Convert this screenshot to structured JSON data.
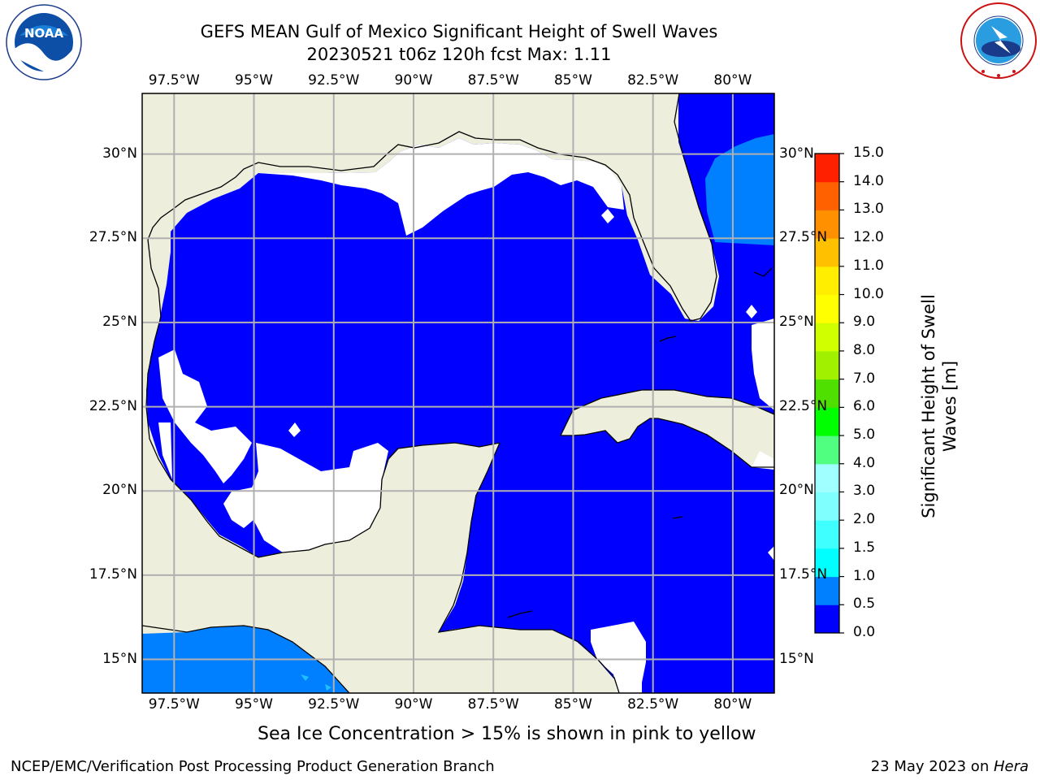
{
  "header": {
    "title_line1": "GEFS MEAN Gulf of Mexico Significant Height of Swell Waves",
    "title_line2": "20230521 t06z 120h fcst   Max: 1.11"
  },
  "logos": {
    "left": {
      "name": "noaa-logo",
      "text": "NOAA",
      "ring_text": "NATIONAL OCEANIC AND ATMOSPHERIC ADMINISTRATION · U.S. DEPARTMENT OF COMMERCE"
    },
    "right": {
      "name": "nws-logo",
      "ring_text": "NATIONAL WEATHER SERVICE"
    }
  },
  "map": {
    "lon_range": [
      -98.5,
      -78.7
    ],
    "lat_range": [
      14.0,
      31.8
    ],
    "lon_ticks": [
      {
        "value": -97.5,
        "label": "97.5°W"
      },
      {
        "value": -95.0,
        "label": "95°W"
      },
      {
        "value": -92.5,
        "label": "92.5°W"
      },
      {
        "value": -90.0,
        "label": "90°W"
      },
      {
        "value": -87.5,
        "label": "87.5°W"
      },
      {
        "value": -85.0,
        "label": "85°W"
      },
      {
        "value": -82.5,
        "label": "82.5°W"
      },
      {
        "value": -80.0,
        "label": "80°W"
      }
    ],
    "lat_ticks": [
      {
        "value": 30.0,
        "label": "30°N"
      },
      {
        "value": 27.5,
        "label": "27.5°N"
      },
      {
        "value": 25.0,
        "label": "25°N"
      },
      {
        "value": 22.5,
        "label": "22.5°N"
      },
      {
        "value": 20.0,
        "label": "20°N"
      },
      {
        "value": 17.5,
        "label": "17.5°N"
      },
      {
        "value": 15.0,
        "label": "15°N"
      }
    ],
    "grid": true,
    "colors": {
      "land": "#eeeedd",
      "sea_low": "#0000ff",
      "sea_mid": "#0080ff",
      "sea_high": "#20c0ff",
      "no_data": "#ffffff",
      "grid": "#b0b0b0"
    }
  },
  "colorbar": {
    "label_line1": "Significant Height of Swell",
    "label_line2": "Waves [m]",
    "levels": [
      0.0,
      0.5,
      1.0,
      1.5,
      2.0,
      3.0,
      4.0,
      5.0,
      6.0,
      7.0,
      8.0,
      9.0,
      10.0,
      11.0,
      12.0,
      13.0,
      14.0,
      15.0
    ],
    "tick_labels": [
      "0.0",
      "0.5",
      "1.0",
      "1.5",
      "2.0",
      "3.0",
      "4.0",
      "5.0",
      "6.0",
      "7.0",
      "8.0",
      "9.0",
      "10.0",
      "11.0",
      "12.0",
      "13.0",
      "14.0",
      "15.0"
    ],
    "colors": [
      "#0000ff",
      "#0080ff",
      "#00ffff",
      "#40ffff",
      "#80ffff",
      "#a0ffff",
      "#50ff80",
      "#00ff00",
      "#50e000",
      "#a0f000",
      "#d0ff00",
      "#ffff00",
      "#ffee00",
      "#ffc000",
      "#ff9000",
      "#ff6000",
      "#ff2000"
    ]
  },
  "caption": "Sea Ice Concentration > 15% is shown in pink to yellow",
  "footer": {
    "left": "NCEP/EMC/Verification Post Processing Product Generation Branch",
    "date": "23 May 2023 on ",
    "machine": "Hera"
  }
}
